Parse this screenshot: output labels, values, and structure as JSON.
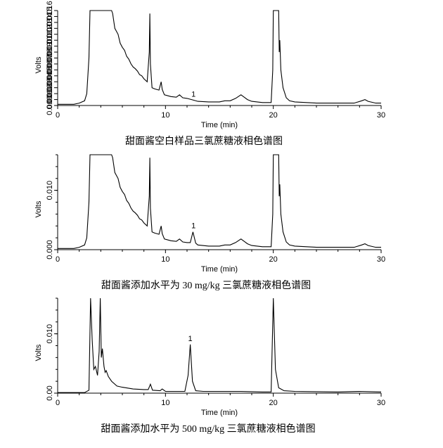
{
  "chart_data": [
    {
      "type": "line",
      "caption": "甜面酱空白样品三氯蔗糖液相色谱图",
      "xlabel": "Time (min)",
      "ylabel": "Volts",
      "xlim": [
        0,
        30
      ],
      "ylim": [
        0,
        0.016
      ],
      "x_ticks": [
        "0",
        "10",
        "20",
        "30"
      ],
      "y_ticks": [
        "0.000",
        "0.001",
        "0.002",
        "0.003",
        "0.004",
        "0.005",
        "0.006",
        "0.007",
        "0.008",
        "0.009",
        "0.010",
        "0.011",
        "0.012",
        "0.013",
        "0.014",
        "0.015",
        "0.016"
      ],
      "peak_label": "1",
      "peak_label_x": 12.6,
      "series": [
        {
          "x": [
            0,
            1.5,
            2,
            2.5,
            2.7,
            2.9,
            3.0,
            5.0,
            5.1,
            5.3,
            5.6,
            5.8,
            6.0,
            6.2,
            6.4,
            6.6,
            6.8,
            7.0,
            7.2,
            7.4,
            7.6,
            7.8,
            8.0,
            8.3,
            8.5,
            8.55,
            8.6,
            8.75,
            9.0,
            9.4,
            9.6,
            9.7,
            9.9,
            10.5,
            11.0,
            11.3,
            11.6,
            12.0,
            12.6,
            13,
            14,
            15,
            15.5,
            16,
            16.5,
            17.0,
            17.3,
            17.6,
            18,
            19,
            19.8,
            19.95,
            20.0,
            20.5,
            20.55,
            20.6,
            20.7,
            20.9,
            21.2,
            21.5,
            22,
            24,
            26,
            27.5,
            28.2,
            28.5,
            28.8,
            29.5,
            30
          ],
          "y": [
            0.0002,
            0.0002,
            0.0004,
            0.0008,
            0.002,
            0.008,
            0.0165,
            0.0165,
            0.0155,
            0.013,
            0.012,
            0.0105,
            0.0098,
            0.0093,
            0.0083,
            0.0078,
            0.007,
            0.0065,
            0.0062,
            0.0058,
            0.0052,
            0.005,
            0.0045,
            0.004,
            0.009,
            0.0155,
            0.007,
            0.003,
            0.0028,
            0.0026,
            0.004,
            0.0027,
            0.0018,
            0.0015,
            0.0014,
            0.0018,
            0.0013,
            0.0012,
            0.0009,
            0.0007,
            0.0006,
            0.0006,
            0.0008,
            0.0008,
            0.0012,
            0.0018,
            0.0014,
            0.001,
            0.0007,
            0.0005,
            0.0005,
            0.006,
            0.0165,
            0.0165,
            0.009,
            0.011,
            0.006,
            0.003,
            0.0013,
            0.0008,
            0.0006,
            0.0004,
            0.0004,
            0.0004,
            0.0008,
            0.001,
            0.0007,
            0.0004,
            0.0004
          ]
        }
      ]
    },
    {
      "type": "line",
      "caption": "甜面酱添加水平为 30 mg/kg 三氯蔗糖液相色谱图",
      "xlabel": "Time (min)",
      "ylabel": "Volts",
      "xlim": [
        0,
        30
      ],
      "ylim": [
        0,
        0.016
      ],
      "x_ticks": [
        "0",
        "10",
        "20",
        "30"
      ],
      "y_ticks": [
        "0.000",
        "0.010"
      ],
      "y_tick_values": [
        0,
        0.01
      ],
      "peak_label": "1",
      "peak_label_x": 12.6,
      "series": [
        {
          "x": [
            0,
            1.5,
            2,
            2.5,
            2.7,
            2.9,
            3.0,
            5.0,
            5.1,
            5.3,
            5.6,
            5.8,
            6.0,
            6.2,
            6.4,
            6.6,
            6.8,
            7.0,
            7.2,
            7.4,
            7.6,
            7.8,
            8.0,
            8.3,
            8.5,
            8.55,
            8.6,
            8.75,
            9.0,
            9.4,
            9.6,
            9.7,
            9.9,
            10.5,
            11.0,
            11.3,
            11.6,
            12.0,
            12.3,
            12.55,
            12.8,
            13,
            14,
            15,
            15.5,
            16,
            16.5,
            17.0,
            17.3,
            17.6,
            18,
            19,
            19.8,
            19.95,
            20.0,
            20.5,
            20.55,
            20.6,
            20.7,
            20.9,
            21.2,
            21.5,
            22,
            24,
            26,
            27.5,
            28.2,
            28.5,
            28.8,
            29.5,
            30
          ],
          "y": [
            0.0002,
            0.0002,
            0.0004,
            0.0008,
            0.002,
            0.008,
            0.0165,
            0.0165,
            0.0155,
            0.013,
            0.012,
            0.0105,
            0.0098,
            0.0093,
            0.0083,
            0.0078,
            0.007,
            0.0065,
            0.0062,
            0.0058,
            0.0052,
            0.005,
            0.0045,
            0.004,
            0.009,
            0.0155,
            0.007,
            0.003,
            0.0028,
            0.0026,
            0.004,
            0.0027,
            0.0018,
            0.0015,
            0.0014,
            0.0018,
            0.0013,
            0.0012,
            0.0012,
            0.003,
            0.0011,
            0.0008,
            0.0006,
            0.0006,
            0.0008,
            0.0008,
            0.0012,
            0.0018,
            0.0014,
            0.001,
            0.0007,
            0.0005,
            0.0005,
            0.006,
            0.0165,
            0.0165,
            0.009,
            0.011,
            0.006,
            0.003,
            0.0013,
            0.0008,
            0.0006,
            0.0004,
            0.0004,
            0.0004,
            0.0008,
            0.001,
            0.0007,
            0.0004,
            0.0004
          ]
        }
      ]
    },
    {
      "type": "line",
      "caption": "甜面酱添加水平为 500 mg/kg 三氯蔗糖液相色谱图",
      "xlabel": "Time (min)",
      "ylabel": "Volts",
      "xlim": [
        0,
        30
      ],
      "ylim": [
        0,
        0.016
      ],
      "x_ticks": [
        "0",
        "10",
        "20",
        "30"
      ],
      "y_ticks": [
        "0.00",
        "0.010"
      ],
      "y_tick_values": [
        0,
        0.01
      ],
      "peak_label": "1",
      "peak_label_x": 12.3,
      "series": [
        {
          "x": [
            0,
            2.5,
            2.9,
            3.05,
            3.2,
            3.35,
            3.5,
            3.7,
            3.85,
            3.95,
            4.05,
            4.15,
            4.3,
            4.4,
            4.5,
            4.7,
            5.0,
            5.5,
            6.0,
            7.0,
            8.0,
            8.4,
            8.6,
            8.8,
            9.5,
            9.7,
            10,
            11,
            11.8,
            12.1,
            12.3,
            12.5,
            12.8,
            13.5,
            15,
            17,
            19,
            19.8,
            20.0,
            20.2,
            20.5,
            21,
            22,
            26,
            28,
            30
          ],
          "y": [
            0.0001,
            0.0001,
            0.0005,
            0.0165,
            0.009,
            0.004,
            0.0045,
            0.003,
            0.007,
            0.0165,
            0.006,
            0.0075,
            0.0045,
            0.0035,
            0.0038,
            0.0028,
            0.002,
            0.0012,
            0.001,
            0.0007,
            0.0006,
            0.0006,
            0.0015,
            0.0005,
            0.0004,
            0.0007,
            0.0003,
            0.0003,
            0.0003,
            0.003,
            0.0082,
            0.002,
            0.0004,
            0.0003,
            0.0003,
            0.0003,
            0.0002,
            0.0002,
            0.0165,
            0.004,
            0.0009,
            0.0004,
            0.0003,
            0.0002,
            0.0003,
            0.0002
          ]
        }
      ]
    }
  ]
}
